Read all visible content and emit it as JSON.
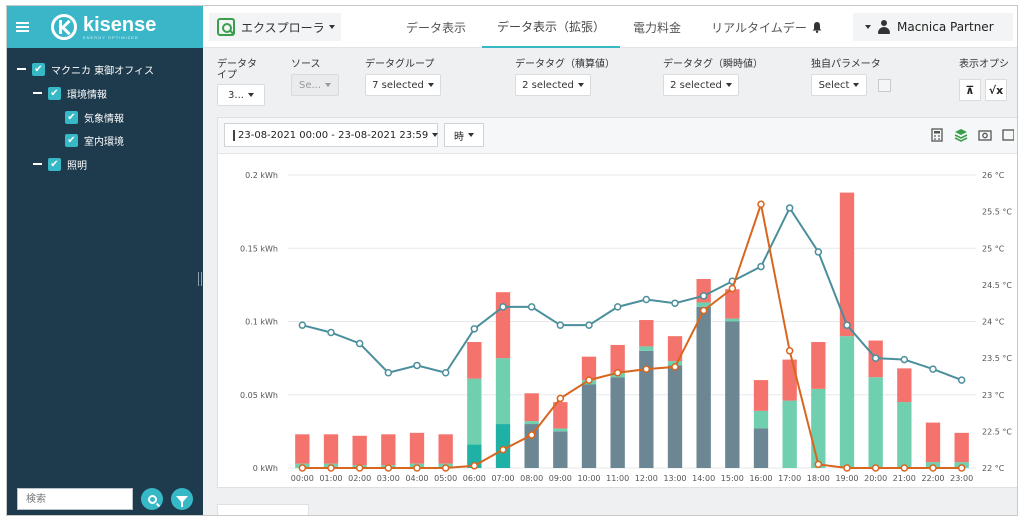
{
  "sidebar": {
    "logo": {
      "name": "kisense",
      "tagline": "ENERGY OPTIMIZER"
    },
    "tree": [
      {
        "label": "マクニカ 東御オフィス",
        "level": 0,
        "checked": true,
        "expanded": true
      },
      {
        "label": "環境情報",
        "level": 1,
        "checked": true,
        "expanded": true
      },
      {
        "label": "気象情報",
        "level": 2,
        "checked": true
      },
      {
        "label": "室内環境",
        "level": 2,
        "checked": true
      },
      {
        "label": "照明",
        "level": 1,
        "checked": true,
        "expanded": true
      }
    ],
    "search": {
      "placeholder": "検索"
    }
  },
  "topbar": {
    "explorer": "エクスプローラ",
    "tabs": [
      {
        "label": "データ表示",
        "active": false
      },
      {
        "label": "データ表示（拡張）",
        "active": true
      },
      {
        "label": "電力料金",
        "active": false
      },
      {
        "label": "リアルタイムデー",
        "active": false
      }
    ],
    "user": "Macnica Partner"
  },
  "filters": {
    "data_type": {
      "label_line1": "データタ",
      "label_line2": "イプ",
      "value": "3..."
    },
    "source": {
      "label": "ソース",
      "value": "Se..."
    },
    "data_group": {
      "label": "データグループ",
      "value": "7 selected"
    },
    "tag_cumulative": {
      "label": "データタグ（積算値）",
      "value": "2 selected"
    },
    "tag_instant": {
      "label": "データタグ（瞬時値）",
      "value": "2 selected"
    },
    "custom_param": {
      "label": "独自パラメータ",
      "value": "Select"
    },
    "display_option": {
      "label": "表示オプシ",
      "btn1": "⊼",
      "btn2": "√x"
    }
  },
  "toolbar": {
    "date_range": "23-08-2021 00:00 - 23-08-2021 23:59",
    "granularity": "時"
  },
  "colors": {
    "red": "#f4736c",
    "green": "#6fcfae",
    "gray": "#6c8694",
    "teal_dark": "#1fb1a6",
    "line_teal": "#4b8e9c",
    "line_orange": "#d9661f",
    "accent": "#36b8c6"
  },
  "chart_data": {
    "type": "bar",
    "x": [
      "00:00",
      "01:00",
      "02:00",
      "03:00",
      "04:00",
      "05:00",
      "06:00",
      "07:00",
      "08:00",
      "09:00",
      "10:00",
      "11:00",
      "12:00",
      "13:00",
      "14:00",
      "15:00",
      "16:00",
      "17:00",
      "18:00",
      "19:00",
      "20:00",
      "21:00",
      "22:00",
      "23:00"
    ],
    "y_left": {
      "min": 0,
      "max": 0.2,
      "ticks": [
        "0 kWh",
        "0.05 kWh",
        "0.1 kWh",
        "0.15 kWh",
        "0.2 kWh"
      ],
      "tick_values": [
        0,
        0.05,
        0.1,
        0.15,
        0.2
      ]
    },
    "y_right": {
      "min": 22,
      "max": 26,
      "ticks": [
        "22 °C",
        "22.5 °C",
        "23 °C",
        "23.5 °C",
        "24 °C",
        "24.5 °C",
        "25 °C",
        "25.5 °C",
        "26 °C"
      ],
      "tick_values": [
        22,
        22.5,
        23,
        23.5,
        24,
        24.5,
        25,
        25.5,
        26
      ]
    },
    "stack_series": [
      {
        "values": [
          0,
          0,
          0,
          0,
          0,
          0,
          0.016,
          0.03,
          0,
          0,
          0,
          0,
          0,
          0,
          0,
          0,
          0,
          0,
          0,
          0,
          0,
          0,
          0,
          0
        ]
      },
      {
        "values": [
          0,
          0,
          0,
          0,
          0,
          0,
          0,
          0,
          0.03,
          0.025,
          0.057,
          0.062,
          0.08,
          0.07,
          0.11,
          0.1,
          0.027,
          0,
          0,
          0,
          0,
          0,
          0,
          0
        ]
      },
      {
        "values": [
          0.003,
          0.003,
          0.002,
          0.002,
          0.003,
          0.003,
          0.045,
          0.045,
          0.002,
          0.002,
          0.003,
          0.003,
          0.003,
          0.003,
          0.003,
          0.002,
          0.012,
          0.046,
          0.054,
          0.09,
          0.062,
          0.045,
          0.004,
          0.004
        ]
      },
      {
        "values": [
          0.02,
          0.02,
          0.02,
          0.021,
          0.021,
          0.02,
          0.025,
          0.045,
          0.019,
          0.018,
          0.016,
          0.019,
          0.018,
          0.017,
          0.016,
          0.02,
          0.021,
          0.028,
          0.032,
          0.098,
          0.025,
          0.023,
          0.027,
          0.02
        ]
      }
    ],
    "line_series": [
      {
        "axis": "right",
        "values": [
          23.95,
          23.85,
          23.7,
          23.3,
          23.4,
          23.3,
          23.9,
          24.2,
          24.2,
          23.95,
          23.95,
          24.2,
          24.3,
          24.25,
          24.35,
          24.55,
          24.75,
          25.55,
          24.95,
          23.95,
          23.5,
          23.48,
          23.35,
          23.2
        ]
      },
      {
        "axis": "right",
        "values": [
          22,
          22,
          22,
          22,
          22,
          22,
          22.03,
          22.25,
          22.45,
          22.95,
          23.2,
          23.3,
          23.35,
          23.38,
          24.15,
          24.45,
          25.6,
          23.6,
          22.05,
          22,
          22,
          22,
          22,
          22
        ]
      }
    ]
  }
}
